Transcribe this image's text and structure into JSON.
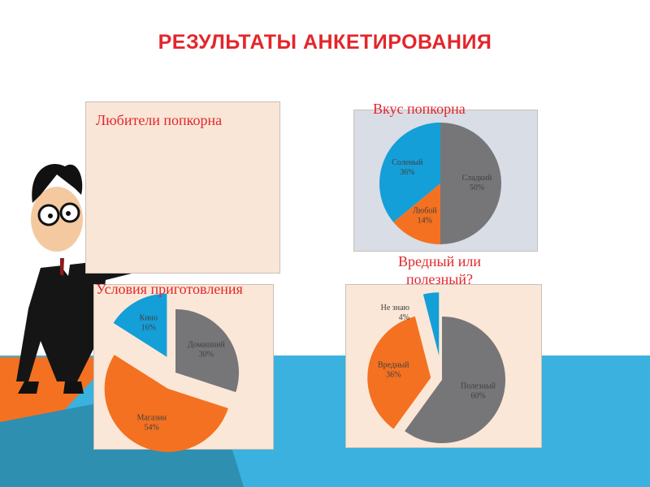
{
  "title": "РЕЗУЛЬТАТЫ АНКЕТИРОВАНИЯ",
  "colors": {
    "gray": "#767679",
    "orange": "#f47121",
    "blue": "#149fd8",
    "title_red": "#e3262b"
  },
  "box1": {
    "title": "Любители попкорна"
  },
  "chart_data": [
    {
      "type": "pie",
      "title": "Вкус попкорна",
      "slices": [
        {
          "label": "Сладкий",
          "value": 50,
          "text": "50%",
          "color": "#767679"
        },
        {
          "label": "Любой",
          "value": 14,
          "text": "14%",
          "color": "#f47121"
        },
        {
          "label": "Соленый",
          "value": 36,
          "text": "36%",
          "color": "#149fd8"
        }
      ]
    },
    {
      "type": "pie",
      "title": "Условия приготовления",
      "exploded": true,
      "slices": [
        {
          "label": "Домашний",
          "value": 30,
          "text": "30%",
          "color": "#767679"
        },
        {
          "label": "Магазин",
          "value": 54,
          "text": "54%",
          "color": "#f47121"
        },
        {
          "label": "Кино",
          "value": 16,
          "text": "16%",
          "color": "#149fd8"
        }
      ]
    },
    {
      "type": "pie",
      "title": "Вредный или полезный?",
      "exploded": true,
      "slices": [
        {
          "label": "Полезный",
          "value": 60,
          "text": "60%",
          "color": "#767679"
        },
        {
          "label": "Вредный",
          "value": 36,
          "text": "36%",
          "color": "#f47121"
        },
        {
          "label": "Не знаю",
          "value": 4,
          "text": "4%",
          "color": "#149fd8"
        }
      ]
    }
  ]
}
